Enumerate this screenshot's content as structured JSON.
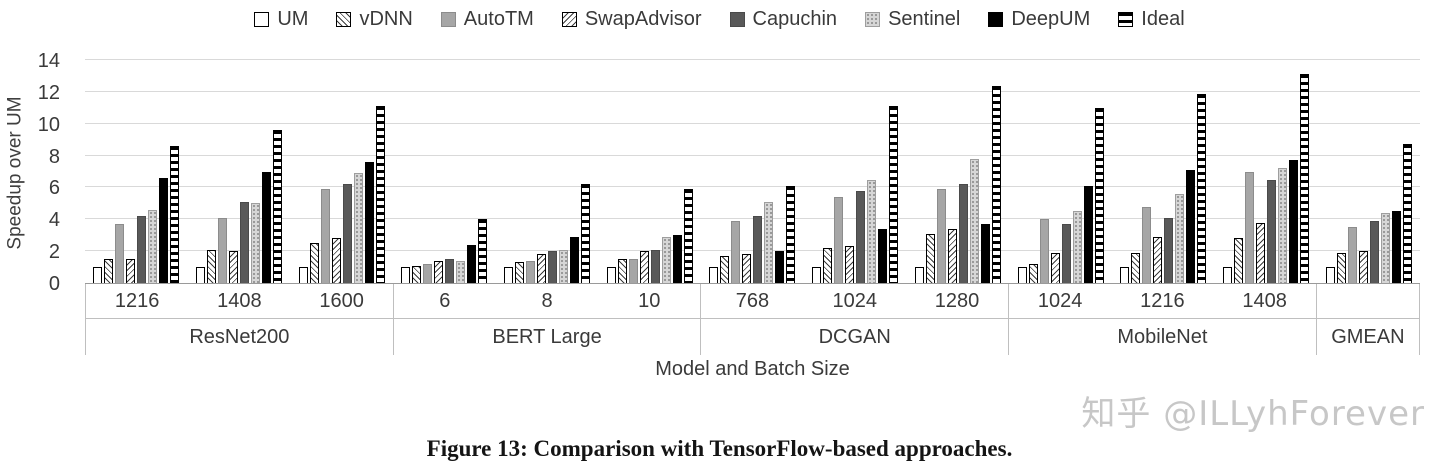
{
  "chart_data": {
    "type": "bar",
    "title": "",
    "ylabel": "Speedup over UM",
    "xlabel": "Model and Batch Size",
    "ylim": [
      0,
      14
    ],
    "yticks": [
      0,
      2,
      4,
      6,
      8,
      10,
      12,
      14
    ],
    "grid": true,
    "legend_position": "top",
    "groups": [
      {
        "model": "ResNet200",
        "batches": [
          "1216",
          "1408",
          "1600"
        ]
      },
      {
        "model": "BERT Large",
        "batches": [
          "6",
          "8",
          "10"
        ]
      },
      {
        "model": "DCGAN",
        "batches": [
          "768",
          "1024",
          "1280"
        ]
      },
      {
        "model": "MobileNet",
        "batches": [
          "1024",
          "1216",
          "1408"
        ]
      },
      {
        "model": "GMEAN",
        "batches": [
          ""
        ]
      }
    ],
    "series": [
      {
        "name": "UM",
        "pattern": "um",
        "values": [
          1.0,
          1.0,
          1.0,
          1.0,
          1.0,
          1.0,
          1.0,
          1.0,
          1.0,
          1.0,
          1.0,
          1.0,
          1.0
        ]
      },
      {
        "name": "vDNN",
        "pattern": "vdnn",
        "values": [
          1.5,
          2.1,
          2.5,
          1.1,
          1.3,
          1.5,
          1.7,
          2.2,
          3.1,
          1.2,
          1.9,
          2.8,
          1.9
        ]
      },
      {
        "name": "AutoTM",
        "pattern": "autotm",
        "values": [
          3.7,
          4.1,
          5.9,
          1.2,
          1.4,
          1.5,
          3.9,
          5.4,
          5.9,
          4.0,
          4.8,
          7.0,
          3.5
        ]
      },
      {
        "name": "SwapAdvisor",
        "pattern": "swap",
        "values": [
          1.5,
          2.0,
          2.8,
          1.4,
          1.8,
          2.0,
          1.8,
          2.3,
          3.4,
          1.9,
          2.9,
          3.8,
          2.0
        ]
      },
      {
        "name": "Capuchin",
        "pattern": "capuchin",
        "values": [
          4.2,
          5.1,
          6.2,
          1.5,
          2.0,
          2.1,
          4.2,
          5.8,
          6.2,
          3.7,
          4.1,
          6.5,
          3.9
        ]
      },
      {
        "name": "Sentinel",
        "pattern": "sentinel",
        "values": [
          4.6,
          5.0,
          6.9,
          1.4,
          2.1,
          2.9,
          5.1,
          6.5,
          7.8,
          4.5,
          5.6,
          7.2,
          4.4
        ]
      },
      {
        "name": "DeepUM",
        "pattern": "deepum",
        "values": [
          6.6,
          7.0,
          7.6,
          2.4,
          2.9,
          3.0,
          2.0,
          3.4,
          3.7,
          6.1,
          7.1,
          7.7,
          4.5
        ]
      },
      {
        "name": "Ideal",
        "pattern": "ideal",
        "values": [
          8.6,
          9.6,
          11.1,
          4.0,
          6.2,
          5.9,
          6.1,
          11.1,
          12.4,
          11.0,
          11.9,
          13.1,
          8.7
        ]
      }
    ],
    "colors": {
      "autotm_fill": "#a6a6a6",
      "capuchin_fill": "#595959",
      "deepum_fill": "#000000",
      "gridline": "#d9d9d9",
      "axis_text": "#3a3a3a"
    }
  },
  "caption": "Figure 13: Comparison with TensorFlow-based approaches.",
  "watermark": "知乎 @ILLyhForever"
}
